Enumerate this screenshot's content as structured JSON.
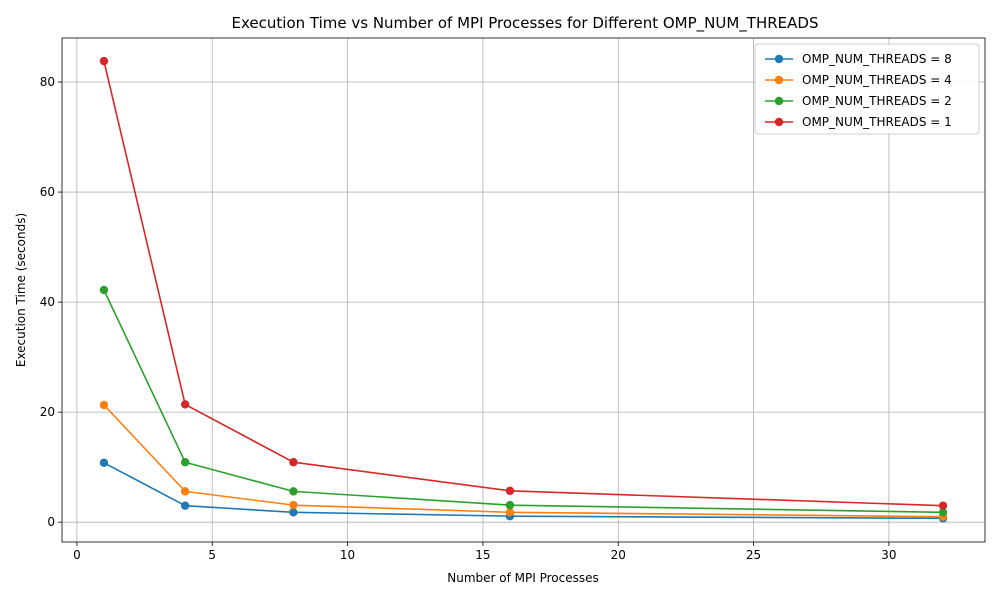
{
  "chart_data": {
    "type": "line",
    "title": "Execution Time vs Number of MPI Processes for Different OMP_NUM_THREADS",
    "xlabel": "Number of MPI Processes",
    "ylabel": "Execution Time (seconds)",
    "xlim": [
      -0.55,
      33.55
    ],
    "ylim": [
      -3.6,
      88.0
    ],
    "xticks": [
      0,
      5,
      10,
      15,
      20,
      25,
      30
    ],
    "yticks": [
      0,
      20,
      40,
      60,
      80
    ],
    "grid": true,
    "legend_position": "top-right",
    "x": [
      1,
      4,
      8,
      16,
      32
    ],
    "series": [
      {
        "name": "OMP_NUM_THREADS = 8",
        "color": "#1f77b4",
        "values": [
          10.8,
          3.0,
          1.8,
          1.1,
          0.7
        ]
      },
      {
        "name": "OMP_NUM_THREADS = 4",
        "color": "#ff7f0e",
        "values": [
          21.3,
          5.6,
          3.1,
          1.8,
          1.0
        ]
      },
      {
        "name": "OMP_NUM_THREADS = 2",
        "color": "#2ca02c",
        "values": [
          42.2,
          10.9,
          5.6,
          3.1,
          1.8
        ]
      },
      {
        "name": "OMP_NUM_THREADS = 1",
        "color": "#d62728",
        "values": [
          83.8,
          21.4,
          10.9,
          5.7,
          3.0
        ]
      }
    ]
  }
}
